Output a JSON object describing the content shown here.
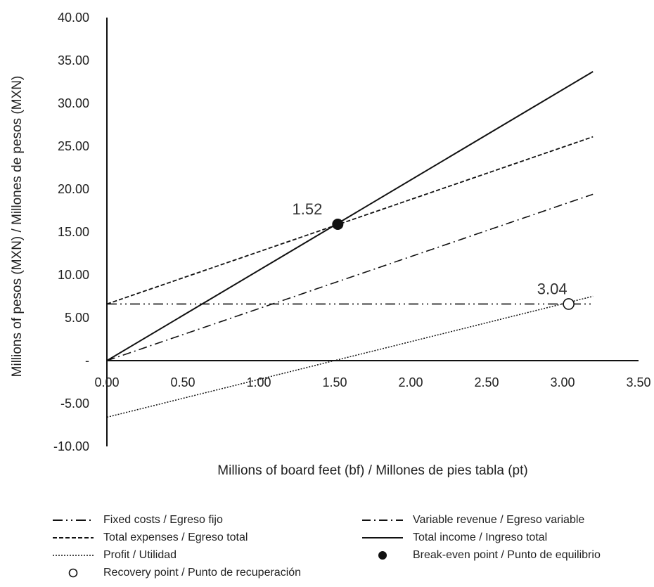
{
  "chart_data": {
    "type": "line",
    "title": "",
    "xlabel": "Millions of board feet (bf) / Millones de pies tabla (pt)",
    "ylabel": "Millions of pesos (MXN) / Millones de pesos (MXN)",
    "xlim": [
      0,
      3.5
    ],
    "ylim": [
      -10,
      40
    ],
    "x_ticks": [
      "0.00",
      "0.50",
      "1.00",
      "1.50",
      "2.00",
      "2.50",
      "3.00",
      "3.50"
    ],
    "y_ticks": [
      "40.00",
      "35.00",
      "30.00",
      "25.00",
      "20.00",
      "15.00",
      "10.00",
      "5.00",
      "-",
      "-5.00",
      "-10.00"
    ],
    "grid": false,
    "legend_position": "bottom",
    "series": [
      {
        "name": "Fixed costs / Egreso fijo",
        "style": "dash-dot-dot",
        "x": [
          0,
          3.2
        ],
        "y": [
          6.6,
          6.6
        ]
      },
      {
        "name": "Variable revenue / Egreso variable",
        "style": "dash-dot",
        "x": [
          0,
          3.2
        ],
        "y": [
          0,
          19.4
        ]
      },
      {
        "name": "Total expenses / Egreso total",
        "style": "dashed",
        "x": [
          0,
          3.2
        ],
        "y": [
          6.6,
          26.1
        ]
      },
      {
        "name": "Total income / Ingreso total",
        "style": "solid",
        "x": [
          0,
          3.2
        ],
        "y": [
          0,
          33.7
        ]
      },
      {
        "name": "Profit / Utilidad",
        "style": "dotted",
        "x": [
          0,
          3.2
        ],
        "y": [
          -6.6,
          7.5
        ]
      }
    ],
    "points": [
      {
        "name": "Break-even point / Punto de equilibrio",
        "marker": "filled",
        "x": 1.52,
        "y": 15.9,
        "label": "1.52"
      },
      {
        "name": "Recovery point / Punto de recuperación",
        "marker": "hollow",
        "x": 3.04,
        "y": 6.6,
        "label": "3.04"
      }
    ]
  }
}
